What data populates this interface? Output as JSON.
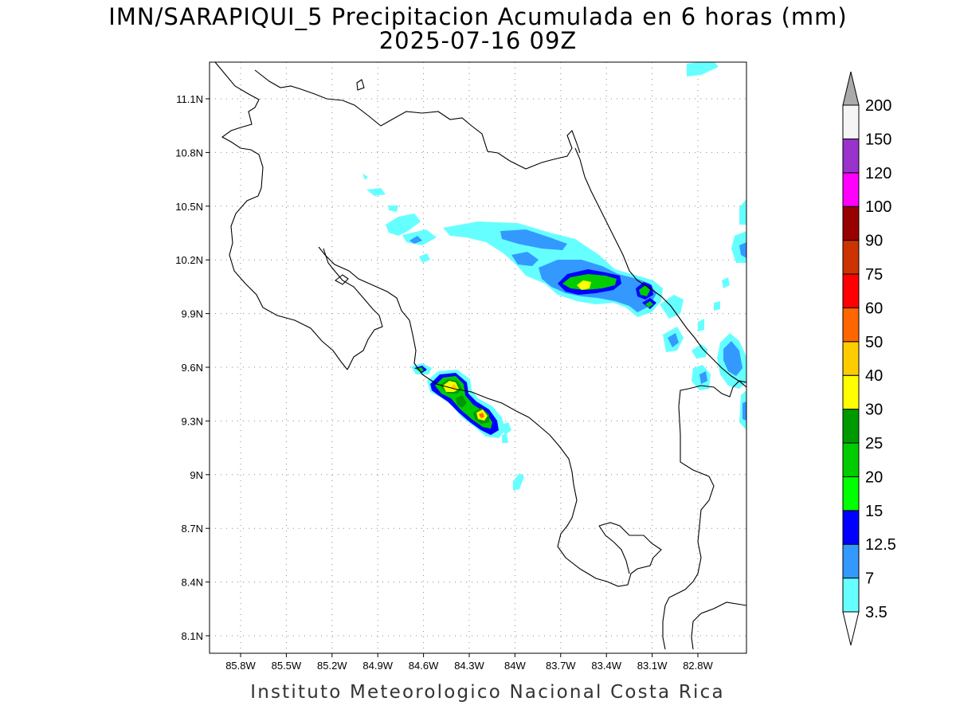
{
  "title": {
    "line1": "IMN/SARAPIQUI_5 Precipitacion Acumulada en 6 horas (mm)",
    "line2": "2025-07-16 09Z"
  },
  "footer": "Instituto Meteorologico Nacional Costa Rica",
  "map": {
    "lon_range": [
      -86.0,
      -83.0
    ],
    "lat_range": [
      8.0,
      11.2
    ],
    "lat_ticks": [
      {
        "value": 11.1,
        "label": "11.1N"
      },
      {
        "value": 10.8,
        "label": "10.8N"
      },
      {
        "value": 10.5,
        "label": "10.5N"
      },
      {
        "value": 10.2,
        "label": "10.2N"
      },
      {
        "value": 9.9,
        "label": "9.9N"
      },
      {
        "value": 9.6,
        "label": "9.6N"
      },
      {
        "value": 9.3,
        "label": "9.3N"
      },
      {
        "value": 9.0,
        "label": "9N"
      },
      {
        "value": 8.7,
        "label": "8.7N"
      },
      {
        "value": 8.4,
        "label": "8.4N"
      },
      {
        "value": 8.1,
        "label": "8.1N"
      }
    ],
    "lon_ticks": [
      {
        "value": -85.8,
        "label": "85.8W"
      },
      {
        "value": -85.5,
        "label": "85.5W"
      },
      {
        "value": -85.2,
        "label": "85.2W"
      },
      {
        "value": -84.9,
        "label": "84.9W"
      },
      {
        "value": -84.6,
        "label": "84.6W"
      },
      {
        "value": -84.3,
        "label": "84.3W"
      },
      {
        "value": -84.0,
        "label": "84W"
      },
      {
        "value": -83.7,
        "label": "83.7W"
      },
      {
        "value": -83.4,
        "label": "83.4W"
      },
      {
        "value": -83.1,
        "label": "83.1W"
      },
      {
        "value": -82.8,
        "label": "82.8W"
      }
    ],
    "grid": "dotted"
  },
  "colorbar": {
    "units": "mm",
    "levels": [
      {
        "label": "3.5",
        "color": "#66ffff"
      },
      {
        "label": "7",
        "color": "#3399ff"
      },
      {
        "label": "12.5",
        "color": "#0000ff"
      },
      {
        "label": "15",
        "color": "#00ff00"
      },
      {
        "label": "20",
        "color": "#00cc00"
      },
      {
        "label": "25",
        "color": "#009900"
      },
      {
        "label": "30",
        "color": "#ffff00"
      },
      {
        "label": "40",
        "color": "#ffcc00"
      },
      {
        "label": "50",
        "color": "#ff6600"
      },
      {
        "label": "60",
        "color": "#ff0000"
      },
      {
        "label": "75",
        "color": "#cc3300"
      },
      {
        "label": "90",
        "color": "#990000"
      },
      {
        "label": "100",
        "color": "#ff00ff"
      },
      {
        "label": "120",
        "color": "#9933cc"
      },
      {
        "label": "150",
        "color": "#f5f5f5"
      },
      {
        "label": "200",
        "color": "#aaaaaa"
      }
    ]
  },
  "precip_bands": [
    {
      "name": "north-band",
      "color": "#66ffff"
    },
    {
      "name": "south-band",
      "color": "#66ffff"
    }
  ]
}
